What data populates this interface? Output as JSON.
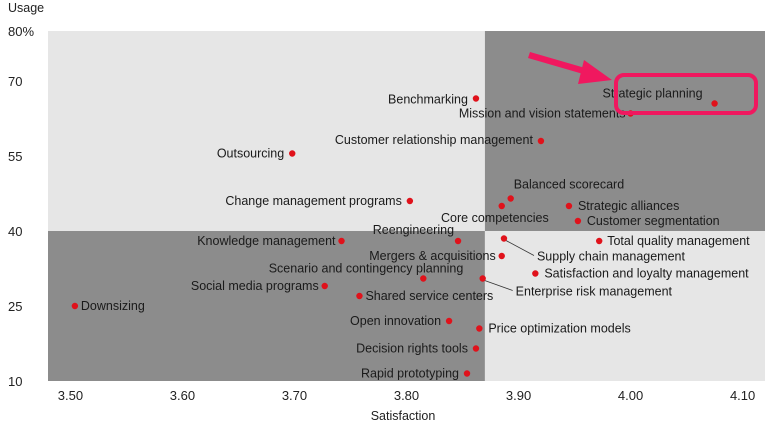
{
  "chart_data": {
    "type": "scatter",
    "xlabel": "Satisfaction",
    "ylabel": "Usage",
    "xlim": [
      3.48,
      4.12
    ],
    "ylim": [
      10,
      80
    ],
    "x_ticks": [
      "3.50",
      "3.60",
      "3.70",
      "3.80",
      "3.90",
      "4.00",
      "4.10"
    ],
    "x_tick_values": [
      3.5,
      3.6,
      3.7,
      3.8,
      3.9,
      4.0,
      4.1
    ],
    "y_ticks": [
      "80%",
      "70",
      "55",
      "40",
      "25",
      "10"
    ],
    "y_tick_values": [
      80,
      70,
      55,
      40,
      25,
      10
    ],
    "quadrant_split": {
      "x": 3.87,
      "y": 40
    },
    "colors": {
      "quadrant_light": "#e6e6e6",
      "quadrant_dark": "#8c8c8c",
      "dot": "#e0121b",
      "highlight": "#f0185f"
    },
    "highlight": "Strategic planning",
    "points": [
      {
        "label": "Strategic planning",
        "x": 4.075,
        "y": 65.5,
        "anchor": "end",
        "dx": -12,
        "dy": -6
      },
      {
        "label": "Mission and vision statements",
        "x": 4.0,
        "y": 63.5,
        "anchor": "end",
        "dx": -5,
        "dy": 4
      },
      {
        "label": "Benchmarking",
        "x": 3.862,
        "y": 66.5,
        "anchor": "end",
        "dx": -8,
        "dy": 5
      },
      {
        "label": "Customer relationship management",
        "x": 3.92,
        "y": 58,
        "anchor": "end",
        "dx": -8,
        "dy": 3
      },
      {
        "label": "Outsourcing",
        "x": 3.698,
        "y": 55.5,
        "anchor": "end",
        "dx": -8,
        "dy": 4
      },
      {
        "label": "Change management programs",
        "x": 3.803,
        "y": 46,
        "anchor": "end",
        "dx": -8,
        "dy": 4
      },
      {
        "label": "Balanced scorecard",
        "x": 3.893,
        "y": 46.5,
        "anchor": "start",
        "dx": 3,
        "dy": -10
      },
      {
        "label": "Core competencies",
        "x": 3.885,
        "y": 45,
        "anchor": "end",
        "dx": 47,
        "dy": 16
      },
      {
        "label": "Strategic alliances",
        "x": 3.945,
        "y": 45,
        "anchor": "start",
        "dx": 9,
        "dy": 4
      },
      {
        "label": "Customer segmentation",
        "x": 3.953,
        "y": 42,
        "anchor": "start",
        "dx": 9,
        "dy": 4
      },
      {
        "label": "Total quality management",
        "x": 3.972,
        "y": 38,
        "anchor": "start",
        "dx": 8,
        "dy": 4
      },
      {
        "label": "Knowledge management",
        "x": 3.742,
        "y": 38,
        "anchor": "end",
        "dx": -6,
        "dy": 4
      },
      {
        "label": "Reengineering",
        "x": 3.846,
        "y": 38,
        "anchor": "end",
        "dx": -4,
        "dy": -7
      },
      {
        "label": "Mergers & acquisitions",
        "x": 3.885,
        "y": 35,
        "anchor": "end",
        "dx": -6,
        "dy": 4
      },
      {
        "label": "Supply chain management",
        "x": 3.887,
        "y": 38.5,
        "anchor": "start",
        "dx": 33,
        "dy": 22,
        "leader": true
      },
      {
        "label": "Satisfaction and loyalty management",
        "x": 3.915,
        "y": 31.5,
        "anchor": "start",
        "dx": 9,
        "dy": 4
      },
      {
        "label": "Scenario and contingency planning",
        "x": 3.815,
        "y": 30.5,
        "anchor": "end",
        "dx": 40,
        "dy": -6
      },
      {
        "label": "Enterprise risk management",
        "x": 3.868,
        "y": 30.5,
        "anchor": "start",
        "dx": 33,
        "dy": 17,
        "leader": true
      },
      {
        "label": "Social media programs",
        "x": 3.727,
        "y": 29,
        "anchor": "end",
        "dx": -6,
        "dy": 4
      },
      {
        "label": "Shared service centers",
        "x": 3.758,
        "y": 27,
        "anchor": "start",
        "dx": 6,
        "dy": 4
      },
      {
        "label": "Downsizing",
        "x": 3.504,
        "y": 25,
        "anchor": "start",
        "dx": 6,
        "dy": 4
      },
      {
        "label": "Open innovation",
        "x": 3.838,
        "y": 22,
        "anchor": "end",
        "dx": -8,
        "dy": 4
      },
      {
        "label": "Price optimization models",
        "x": 3.865,
        "y": 20.5,
        "anchor": "start",
        "dx": 9,
        "dy": 4
      },
      {
        "label": "Decision rights tools",
        "x": 3.862,
        "y": 16.5,
        "anchor": "end",
        "dx": -8,
        "dy": 4
      },
      {
        "label": "Rapid prototyping",
        "x": 3.854,
        "y": 11.5,
        "anchor": "end",
        "dx": -8,
        "dy": 4
      }
    ]
  }
}
